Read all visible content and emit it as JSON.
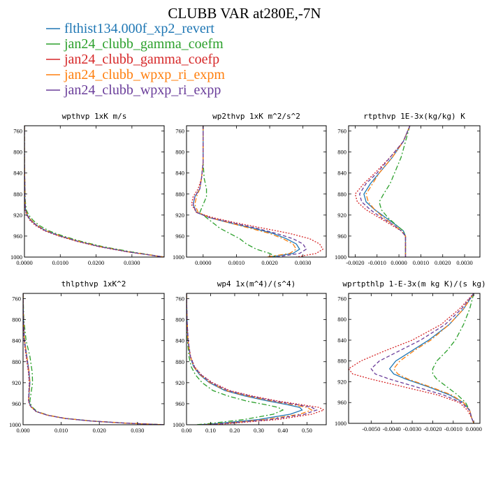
{
  "figure": {
    "title": "CLUBB VAR at280E,-7N"
  },
  "chart_data": {
    "type": "line",
    "title": "CLUBB VAR at280E,-7N",
    "legend": {
      "placement": "top-left",
      "entries": [
        {
          "name": "flthist134.000f_xp2_revert",
          "color": "#1f77b4",
          "style": "solid"
        },
        {
          "name": "jan24_clubb_gamma_coefm",
          "color": "#2ca02c",
          "style": "dashdot"
        },
        {
          "name": "jan24_clubb_gamma_coefp",
          "color": "#d62728",
          "style": "dotted"
        },
        {
          "name": "jan24_clubb_wpxp_ri_expm",
          "color": "#ff7f0e",
          "style": "dashdot"
        },
        {
          "name": "jan24_clubb_wpxp_ri_expp",
          "color": "#6a3d9a",
          "style": "dashed"
        }
      ]
    },
    "panels": [
      {
        "title": "wpthvp  1xK m/s",
        "xlim": [
          0,
          0.039
        ],
        "ylim": [
          1000,
          750
        ],
        "xticks": [
          0,
          0.01,
          0.02,
          0.03
        ],
        "xtick_labels": [
          "0.0000",
          "0.0100",
          "0.0200",
          "0.0300"
        ],
        "yticks": [
          760,
          800,
          840,
          880,
          920,
          960,
          1000
        ],
        "y": [
          750,
          780,
          820,
          860,
          890,
          910,
          920,
          930,
          940,
          950,
          960,
          970,
          980,
          990,
          1000
        ],
        "series": [
          {
            "x": [
              0,
              0,
              0,
              0.0001,
              0.0001,
              0.0003,
              0.0008,
              0.0018,
              0.0035,
              0.006,
              0.01,
              0.015,
              0.021,
              0.029,
              0.039
            ]
          },
          {
            "x": [
              0,
              0,
              0,
              0.0001,
              0.0002,
              0.0005,
              0.0012,
              0.0024,
              0.0042,
              0.0068,
              0.0108,
              0.0158,
              0.0218,
              0.0298,
              0.039
            ]
          },
          {
            "x": [
              0,
              0,
              0,
              0.0001,
              0.0001,
              0.0002,
              0.0006,
              0.0015,
              0.0031,
              0.0056,
              0.0096,
              0.0146,
              0.0206,
              0.0286,
              0.039
            ]
          },
          {
            "x": [
              0,
              0,
              0,
              0.0001,
              0.0001,
              0.0003,
              0.0009,
              0.0019,
              0.0036,
              0.0061,
              0.0101,
              0.0151,
              0.0211,
              0.0291,
              0.039
            ]
          },
          {
            "x": [
              0,
              0,
              0,
              0.0001,
              0.0001,
              0.0003,
              0.0007,
              0.0017,
              0.0034,
              0.0059,
              0.0099,
              0.0149,
              0.0209,
              0.0289,
              0.039
            ]
          }
        ]
      },
      {
        "title": "wp2thvp  1xK m^2/s^2",
        "xlim": [
          -0.0005,
          0.0037
        ],
        "ylim": [
          1000,
          750
        ],
        "xticks": [
          0,
          0.001,
          0.002,
          0.003
        ],
        "xtick_labels": [
          "0.0000",
          "0.0010",
          "0.0020",
          "0.0030"
        ],
        "yticks": [
          760,
          800,
          840,
          880,
          920,
          960,
          1000
        ],
        "y": [
          750,
          780,
          820,
          850,
          870,
          885,
          900,
          915,
          925,
          935,
          945,
          955,
          965,
          975,
          985,
          993,
          1000
        ],
        "series": [
          {
            "x": [
              0,
              0,
              0,
              -5e-05,
              -0.0001,
              -0.00025,
              -0.0003,
              -0.0002,
              0.0002,
              0.0008,
              0.0015,
              0.0021,
              0.0025,
              0.0028,
              0.0029,
              0.0027,
              0.002
            ]
          },
          {
            "x": [
              0,
              0,
              0,
              3e-05,
              0.0001,
              0.0001,
              0,
              -0.0001,
              0.0001,
              0.0003,
              0.0005,
              0.0008,
              0.0011,
              0.0013,
              0.0016,
              0.002,
              0.0022
            ]
          },
          {
            "x": [
              0,
              0,
              0,
              -5e-05,
              -0.00015,
              -0.0003,
              -0.00035,
              -0.0002,
              0.0003,
              0.001,
              0.0018,
              0.0026,
              0.0032,
              0.0035,
              0.0036,
              0.0034,
              0.0028
            ]
          },
          {
            "x": [
              0,
              0,
              0,
              -5e-05,
              -0.0001,
              -0.0002,
              -0.00025,
              -0.00015,
              0.0002,
              0.0008,
              0.0014,
              0.002,
              0.0024,
              0.0027,
              0.0028,
              0.0026,
              0.0019
            ]
          },
          {
            "x": [
              0,
              0,
              0,
              -5e-05,
              -0.0001,
              -0.00025,
              -0.0003,
              -0.0002,
              0.0002,
              0.0009,
              0.0016,
              0.0022,
              0.0027,
              0.003,
              0.0031,
              0.0029,
              0.0022
            ]
          }
        ]
      },
      {
        "title": "rtpthvp  1E-3x(kg/kg) K",
        "xlim": [
          -0.0023,
          0.0037
        ],
        "ylim": [
          1000,
          750
        ],
        "xticks": [
          -0.002,
          -0.001,
          0,
          0.001,
          0.002,
          0.003
        ],
        "xtick_labels": [
          "-0.0020",
          "-0.0010",
          "0.0000",
          "0.0010",
          "0.0020",
          "0.0030"
        ],
        "yticks": [
          760,
          800,
          840,
          880,
          920,
          960,
          1000
        ],
        "y": [
          750,
          780,
          810,
          840,
          860,
          880,
          895,
          910,
          925,
          940,
          950,
          960,
          970,
          985,
          1000
        ],
        "series": [
          {
            "x": [
              0.0005,
              0.0002,
              -0.0003,
              -0.0009,
              -0.0013,
              -0.0016,
              -0.0015,
              -0.0011,
              -0.0006,
              -0.0001,
              0.0002,
              0.0003,
              0.0003,
              0.0003,
              0.0003
            ]
          },
          {
            "x": [
              0.0005,
              0.0003,
              0.0001,
              -0.0002,
              -0.0004,
              -0.0007,
              -0.0009,
              -0.0008,
              -0.0005,
              -0.0001,
              0.0002,
              0.0003,
              0.0003,
              0.0003,
              0.0003
            ]
          },
          {
            "x": [
              0.0005,
              0.0002,
              -0.0004,
              -0.0011,
              -0.0016,
              -0.002,
              -0.0019,
              -0.0015,
              -0.0009,
              -0.0003,
              0.0001,
              0.0003,
              0.0003,
              0.0003,
              0.0003
            ]
          },
          {
            "x": [
              0.0005,
              0.0002,
              -0.0003,
              -0.0009,
              -0.0012,
              -0.0015,
              -0.0014,
              -0.0011,
              -0.0007,
              -0.0002,
              0.0001,
              0.0003,
              0.0003,
              0.0003,
              0.0003
            ]
          },
          {
            "x": [
              0.0005,
              0.0002,
              -0.0004,
              -0.001,
              -0.0015,
              -0.0018,
              -0.0017,
              -0.0013,
              -0.0008,
              -0.0002,
              0.0001,
              0.0003,
              0.0003,
              0.0003,
              0.0003
            ]
          }
        ]
      },
      {
        "title": "thlpthvp  1xK^2",
        "xlim": [
          0,
          0.037
        ],
        "ylim": [
          1000,
          750
        ],
        "xticks": [
          0,
          0.01,
          0.02,
          0.03
        ],
        "xtick_labels": [
          "0.000",
          "0.010",
          "0.020",
          "0.030"
        ],
        "yticks": [
          760,
          800,
          840,
          880,
          920,
          960,
          1000
        ],
        "y": [
          750,
          800,
          840,
          870,
          900,
          920,
          940,
          955,
          965,
          975,
          982,
          988,
          993,
          997,
          1000
        ],
        "series": [
          {
            "x": [
              0,
              0.0001,
              0.0004,
              0.001,
              0.0016,
              0.0018,
              0.0016,
              0.0015,
              0.002,
              0.0035,
              0.0065,
              0.011,
              0.018,
              0.027,
              0.037
            ]
          },
          {
            "x": [
              0,
              0.0002,
              0.0008,
              0.0018,
              0.0024,
              0.0025,
              0.0021,
              0.0018,
              0.0022,
              0.0037,
              0.0067,
              0.0112,
              0.0182,
              0.0272,
              0.037
            ]
          },
          {
            "x": [
              0,
              0.0001,
              0.0003,
              0.0008,
              0.0014,
              0.0016,
              0.0015,
              0.0014,
              0.0019,
              0.0034,
              0.0064,
              0.0109,
              0.0179,
              0.0269,
              0.037
            ]
          },
          {
            "x": [
              0,
              0.0001,
              0.0004,
              0.001,
              0.0016,
              0.0018,
              0.0016,
              0.0015,
              0.002,
              0.0035,
              0.0066,
              0.0111,
              0.0181,
              0.0271,
              0.037
            ]
          },
          {
            "x": [
              0,
              0.0001,
              0.0003,
              0.0009,
              0.0015,
              0.0017,
              0.0015,
              0.0015,
              0.002,
              0.0035,
              0.0065,
              0.011,
              0.018,
              0.027,
              0.037
            ]
          }
        ]
      },
      {
        "title": "wp4  1x(m^4)/(s^4)",
        "xlim": [
          0,
          0.58
        ],
        "ylim": [
          1000,
          750
        ],
        "xticks": [
          0,
          0.1,
          0.2,
          0.3,
          0.4,
          0.5
        ],
        "xtick_labels": [
          "0.00",
          "0.10",
          "0.20",
          "0.30",
          "0.40",
          "0.50"
        ],
        "yticks": [
          760,
          800,
          840,
          880,
          920,
          960,
          1000
        ],
        "y": [
          750,
          800,
          840,
          870,
          890,
          905,
          920,
          935,
          945,
          955,
          962,
          967,
          972,
          980,
          990,
          998,
          1000
        ],
        "series": [
          {
            "x": [
              0,
              0.002,
              0.006,
              0.015,
              0.03,
              0.055,
              0.095,
              0.16,
              0.24,
              0.34,
              0.42,
              0.47,
              0.48,
              0.43,
              0.3,
              0.12,
              0.05
            ]
          },
          {
            "x": [
              0,
              0.002,
              0.004,
              0.01,
              0.02,
              0.037,
              0.065,
              0.11,
              0.17,
              0.25,
              0.33,
              0.38,
              0.4,
              0.36,
              0.24,
              0.09,
              0.04
            ]
          },
          {
            "x": [
              0,
              0.002,
              0.007,
              0.017,
              0.034,
              0.062,
              0.108,
              0.18,
              0.27,
              0.38,
              0.48,
              0.55,
              0.57,
              0.52,
              0.38,
              0.17,
              0.08
            ]
          },
          {
            "x": [
              0,
              0.002,
              0.006,
              0.015,
              0.031,
              0.057,
              0.098,
              0.165,
              0.25,
              0.355,
              0.445,
              0.5,
              0.52,
              0.47,
              0.33,
              0.14,
              0.06
            ]
          },
          {
            "x": [
              0,
              0.002,
              0.007,
              0.016,
              0.033,
              0.06,
              0.103,
              0.172,
              0.26,
              0.365,
              0.46,
              0.52,
              0.54,
              0.49,
              0.35,
              0.15,
              0.07
            ]
          }
        ]
      },
      {
        "title": "wprtpthlp  1-E-3x(m kg K)/(s kg)",
        "xlim": [
          -0.0061,
          0.0003
        ],
        "ylim": [
          1000,
          750
        ],
        "xticks": [
          -0.005,
          -0.004,
          -0.003,
          -0.002,
          -0.001,
          0
        ],
        "xtick_labels": [
          "-0.0050",
          "-0.0040",
          "-0.0030",
          "-0.0020",
          "-0.0010",
          "0.0000"
        ],
        "yticks": [
          760,
          800,
          840,
          880,
          920,
          960,
          1000
        ],
        "y": [
          750,
          780,
          810,
          840,
          860,
          880,
          895,
          905,
          915,
          930,
          945,
          960,
          975,
          990,
          1000
        ],
        "series": [
          {
            "x": [
              0,
              -0.0005,
              -0.0012,
              -0.0022,
              -0.003,
              -0.0038,
              -0.0041,
              -0.0039,
              -0.0033,
              -0.0022,
              -0.0012,
              -0.0005,
              -0.0002,
              -0.0001,
              0
            ]
          },
          {
            "x": [
              0,
              -0.0002,
              -0.0005,
              -0.0009,
              -0.0013,
              -0.0018,
              -0.002,
              -0.002,
              -0.0018,
              -0.0013,
              -0.0008,
              -0.0004,
              -0.0002,
              -0.0001,
              0
            ]
          },
          {
            "x": [
              0,
              -0.0007,
              -0.0016,
              -0.003,
              -0.0043,
              -0.0055,
              -0.0061,
              -0.0059,
              -0.005,
              -0.0034,
              -0.0018,
              -0.0007,
              -0.0003,
              -0.0001,
              0
            ]
          },
          {
            "x": [
              0,
              -0.0005,
              -0.0012,
              -0.0021,
              -0.0029,
              -0.0036,
              -0.0039,
              -0.0037,
              -0.0032,
              -0.0021,
              -0.0011,
              -0.0005,
              -0.0002,
              -0.0001,
              0
            ]
          },
          {
            "x": [
              0,
              -0.0006,
              -0.0014,
              -0.0026,
              -0.0036,
              -0.0046,
              -0.005,
              -0.0048,
              -0.0041,
              -0.0028,
              -0.0015,
              -0.0006,
              -0.0002,
              -0.0001,
              0
            ]
          }
        ]
      }
    ]
  }
}
